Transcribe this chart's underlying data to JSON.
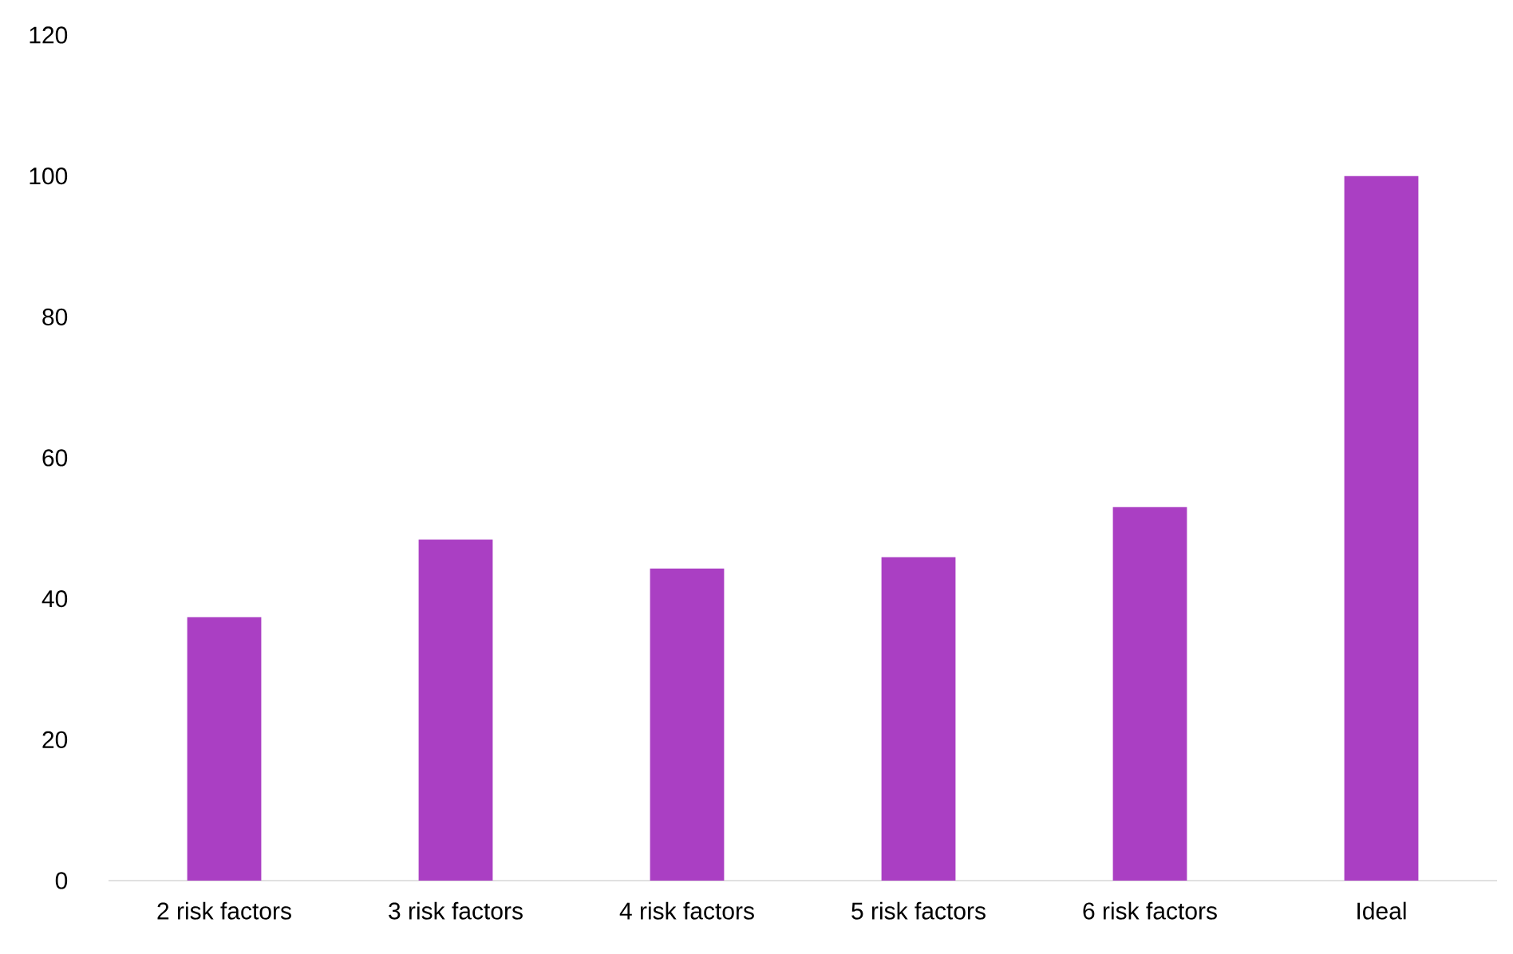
{
  "chart_data": {
    "type": "bar",
    "categories": [
      "2 risk factors",
      "3 risk factors",
      "4 risk factors",
      "5 risk factors",
      "6 risk factors",
      "Ideal"
    ],
    "values": [
      37.4,
      48.4,
      44.3,
      45.9,
      53,
      100
    ],
    "color": "#aa3fc3",
    "ylim": [
      0,
      120
    ],
    "yticks": [
      0,
      20,
      40,
      60,
      80,
      100,
      120
    ]
  }
}
